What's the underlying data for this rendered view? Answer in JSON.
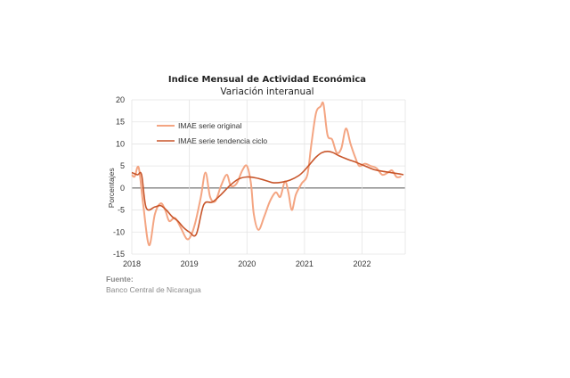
{
  "chart_data": {
    "type": "line",
    "title": "Indice Mensual de  Actividad Económica",
    "subtitle": "Variación interanual",
    "ylabel": "Porcentajes",
    "xlabel": "",
    "ylim": [
      -15,
      20
    ],
    "yticks": [
      -15,
      -10,
      -5,
      0,
      5,
      10,
      15,
      20
    ],
    "xlim": [
      2018.0,
      2022.75
    ],
    "xticks": [
      {
        "label": "2018",
        "value": 2018.0
      },
      {
        "label": "2019",
        "value": 2019.0
      },
      {
        "label": "2020",
        "value": 2020.0
      },
      {
        "label": "2021",
        "value": 2021.0
      },
      {
        "label": "2022",
        "value": 2022.0
      }
    ],
    "grid": true,
    "legend_position": "top-left",
    "series": [
      {
        "name": "IMAE serie original",
        "color": "#f4a582",
        "points": [
          [
            2018.0,
            3.0
          ],
          [
            2018.05,
            2.6
          ],
          [
            2018.12,
            4.6
          ],
          [
            2018.2,
            -4.0
          ],
          [
            2018.3,
            -13.0
          ],
          [
            2018.4,
            -6.0
          ],
          [
            2018.5,
            -3.5
          ],
          [
            2018.58,
            -5.0
          ],
          [
            2018.65,
            -7.5
          ],
          [
            2018.75,
            -6.8
          ],
          [
            2018.85,
            -9.0
          ],
          [
            2018.95,
            -11.5
          ],
          [
            2019.02,
            -11.0
          ],
          [
            2019.1,
            -8.0
          ],
          [
            2019.2,
            -2.0
          ],
          [
            2019.28,
            3.5
          ],
          [
            2019.36,
            -2.0
          ],
          [
            2019.45,
            -3.0
          ],
          [
            2019.55,
            0.5
          ],
          [
            2019.65,
            3.0
          ],
          [
            2019.72,
            0.5
          ],
          [
            2019.82,
            1.0
          ],
          [
            2019.92,
            4.0
          ],
          [
            2020.0,
            5.0
          ],
          [
            2020.07,
            1.0
          ],
          [
            2020.12,
            -6.0
          ],
          [
            2020.2,
            -9.5
          ],
          [
            2020.3,
            -6.5
          ],
          [
            2020.4,
            -3.0
          ],
          [
            2020.5,
            -1.0
          ],
          [
            2020.58,
            -2.0
          ],
          [
            2020.66,
            1.5
          ],
          [
            2020.72,
            -1.0
          ],
          [
            2020.78,
            -5.0
          ],
          [
            2020.85,
            -1.5
          ],
          [
            2020.95,
            1.0
          ],
          [
            2021.05,
            3.0
          ],
          [
            2021.12,
            10.0
          ],
          [
            2021.2,
            17.0
          ],
          [
            2021.28,
            18.5
          ],
          [
            2021.33,
            19.0
          ],
          [
            2021.4,
            12.0
          ],
          [
            2021.48,
            11.0
          ],
          [
            2021.56,
            8.0
          ],
          [
            2021.64,
            9.0
          ],
          [
            2021.72,
            13.5
          ],
          [
            2021.8,
            10.0
          ],
          [
            2021.88,
            7.0
          ],
          [
            2021.95,
            5.0
          ],
          [
            2022.05,
            5.5
          ],
          [
            2022.15,
            5.0
          ],
          [
            2022.25,
            4.5
          ],
          [
            2022.35,
            3.0
          ],
          [
            2022.45,
            3.5
          ],
          [
            2022.52,
            4.0
          ],
          [
            2022.6,
            2.5
          ],
          [
            2022.68,
            2.6
          ]
        ]
      },
      {
        "name": "IMAE serie  tendencia ciclo",
        "color": "#c8552a",
        "points": [
          [
            2018.0,
            3.5
          ],
          [
            2018.1,
            3.0
          ],
          [
            2018.17,
            3.0
          ],
          [
            2018.25,
            -4.5
          ],
          [
            2018.4,
            -4.3
          ],
          [
            2018.5,
            -4.0
          ],
          [
            2018.6,
            -5.0
          ],
          [
            2018.7,
            -6.5
          ],
          [
            2018.8,
            -7.5
          ],
          [
            2018.9,
            -9.0
          ],
          [
            2019.0,
            -10.0
          ],
          [
            2019.12,
            -10.5
          ],
          [
            2019.25,
            -3.8
          ],
          [
            2019.4,
            -3.2
          ],
          [
            2019.55,
            -1.5
          ],
          [
            2019.7,
            0.5
          ],
          [
            2019.85,
            2.0
          ],
          [
            2020.0,
            2.5
          ],
          [
            2020.15,
            2.3
          ],
          [
            2020.3,
            1.8
          ],
          [
            2020.45,
            1.2
          ],
          [
            2020.6,
            1.3
          ],
          [
            2020.75,
            1.8
          ],
          [
            2020.9,
            2.8
          ],
          [
            2021.0,
            4.0
          ],
          [
            2021.1,
            5.5
          ],
          [
            2021.2,
            7.0
          ],
          [
            2021.3,
            8.0
          ],
          [
            2021.4,
            8.3
          ],
          [
            2021.5,
            8.0
          ],
          [
            2021.6,
            7.3
          ],
          [
            2021.75,
            6.5
          ],
          [
            2021.9,
            5.8
          ],
          [
            2022.05,
            5.0
          ],
          [
            2022.2,
            4.2
          ],
          [
            2022.35,
            3.8
          ],
          [
            2022.5,
            3.5
          ],
          [
            2022.65,
            3.2
          ],
          [
            2022.72,
            3.0
          ]
        ]
      }
    ]
  },
  "source": {
    "label": "Fuente:",
    "text": "Banco Central de Nicaragua"
  }
}
